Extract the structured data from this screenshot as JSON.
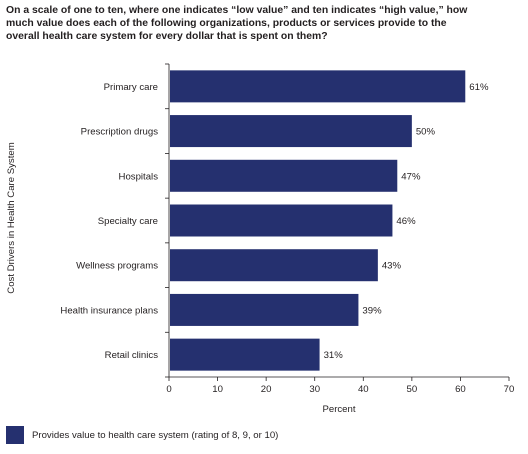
{
  "chart_data": {
    "type": "bar",
    "orientation": "horizontal",
    "title_lines": [
      "On a scale of one to ten, where one indicates “low value” and ten indicates “high value,” how",
      "much value does each of the following organizations, products or services provide to the",
      "overall health care system for every dollar that is spent on them?"
    ],
    "categories": [
      "Primary care",
      "Prescription drugs",
      "Hospitals",
      "Specialty care",
      "Wellness programs",
      "Health insurance plans",
      "Retail clinics"
    ],
    "values": [
      61,
      50,
      47,
      46,
      43,
      39,
      31
    ],
    "value_labels": [
      "61%",
      "50%",
      "47%",
      "46%",
      "43%",
      "39%",
      "31%"
    ],
    "xlabel": "Percent",
    "ylabel": "Cost Drivers in Health Care System",
    "xlim": [
      0,
      70
    ],
    "xticks": [
      "0",
      "10",
      "20",
      "30",
      "40",
      "50",
      "60",
      "70"
    ],
    "grid": false,
    "legend": {
      "placement": "bottom-left",
      "entries": [
        {
          "label": "Provides value to health care system (rating of 8, 9, or 10)",
          "color": "#25306f"
        }
      ]
    },
    "bar_color": "#25306f"
  }
}
